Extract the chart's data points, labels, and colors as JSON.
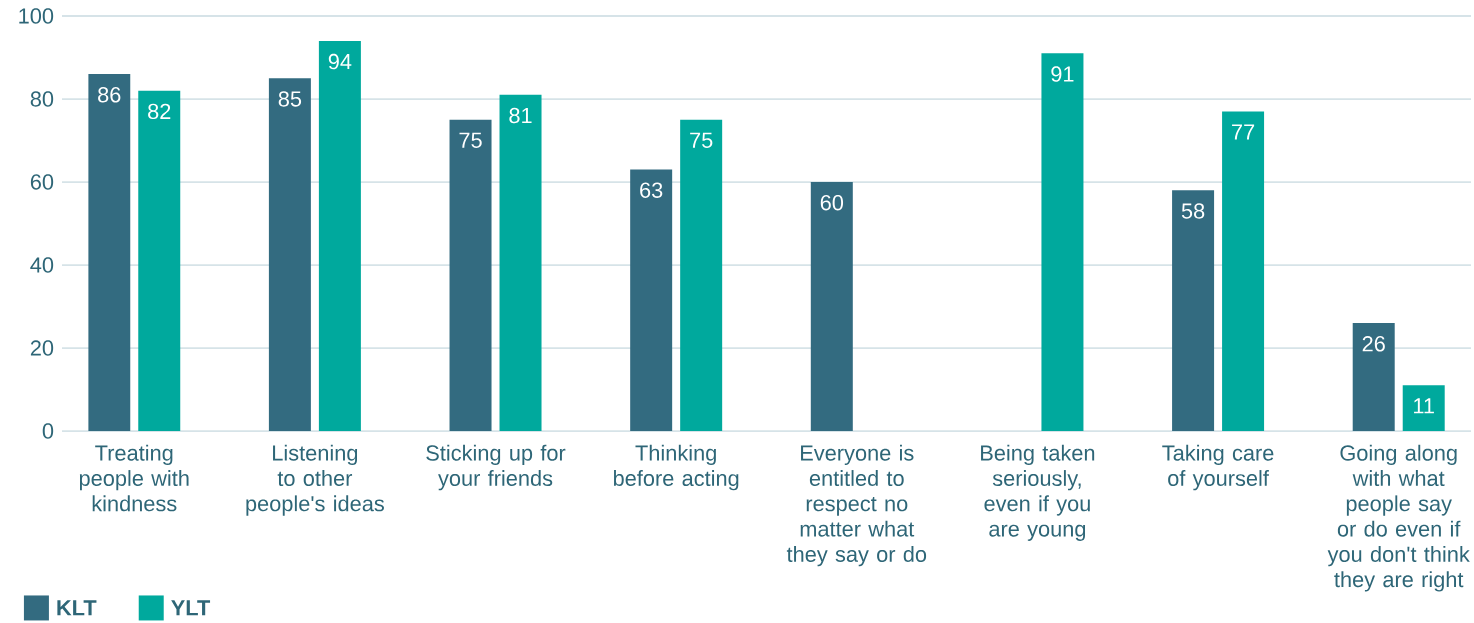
{
  "chart_data": {
    "type": "bar",
    "categories": [
      "Treating people with kindness",
      "Listening to other people's ideas",
      "Sticking up for your friends",
      "Thinking before acting",
      "Everyone is entitled to respect no matter what they say or do",
      "Being taken seriously, even if you are young",
      "Taking care of yourself",
      "Going along with what people say or do even if you don't think they are right"
    ],
    "series": [
      {
        "name": "KLT",
        "color": "#336b80",
        "values": [
          86,
          85,
          75,
          63,
          60,
          null,
          58,
          26
        ]
      },
      {
        "name": "YLT",
        "color": "#00a99d",
        "values": [
          82,
          94,
          81,
          75,
          null,
          91,
          77,
          11
        ]
      }
    ],
    "ylim": [
      0,
      100
    ],
    "yticks": [
      0,
      20,
      40,
      60,
      80,
      100
    ],
    "grid": "y",
    "legend": "bottom left",
    "data_labels": true
  }
}
